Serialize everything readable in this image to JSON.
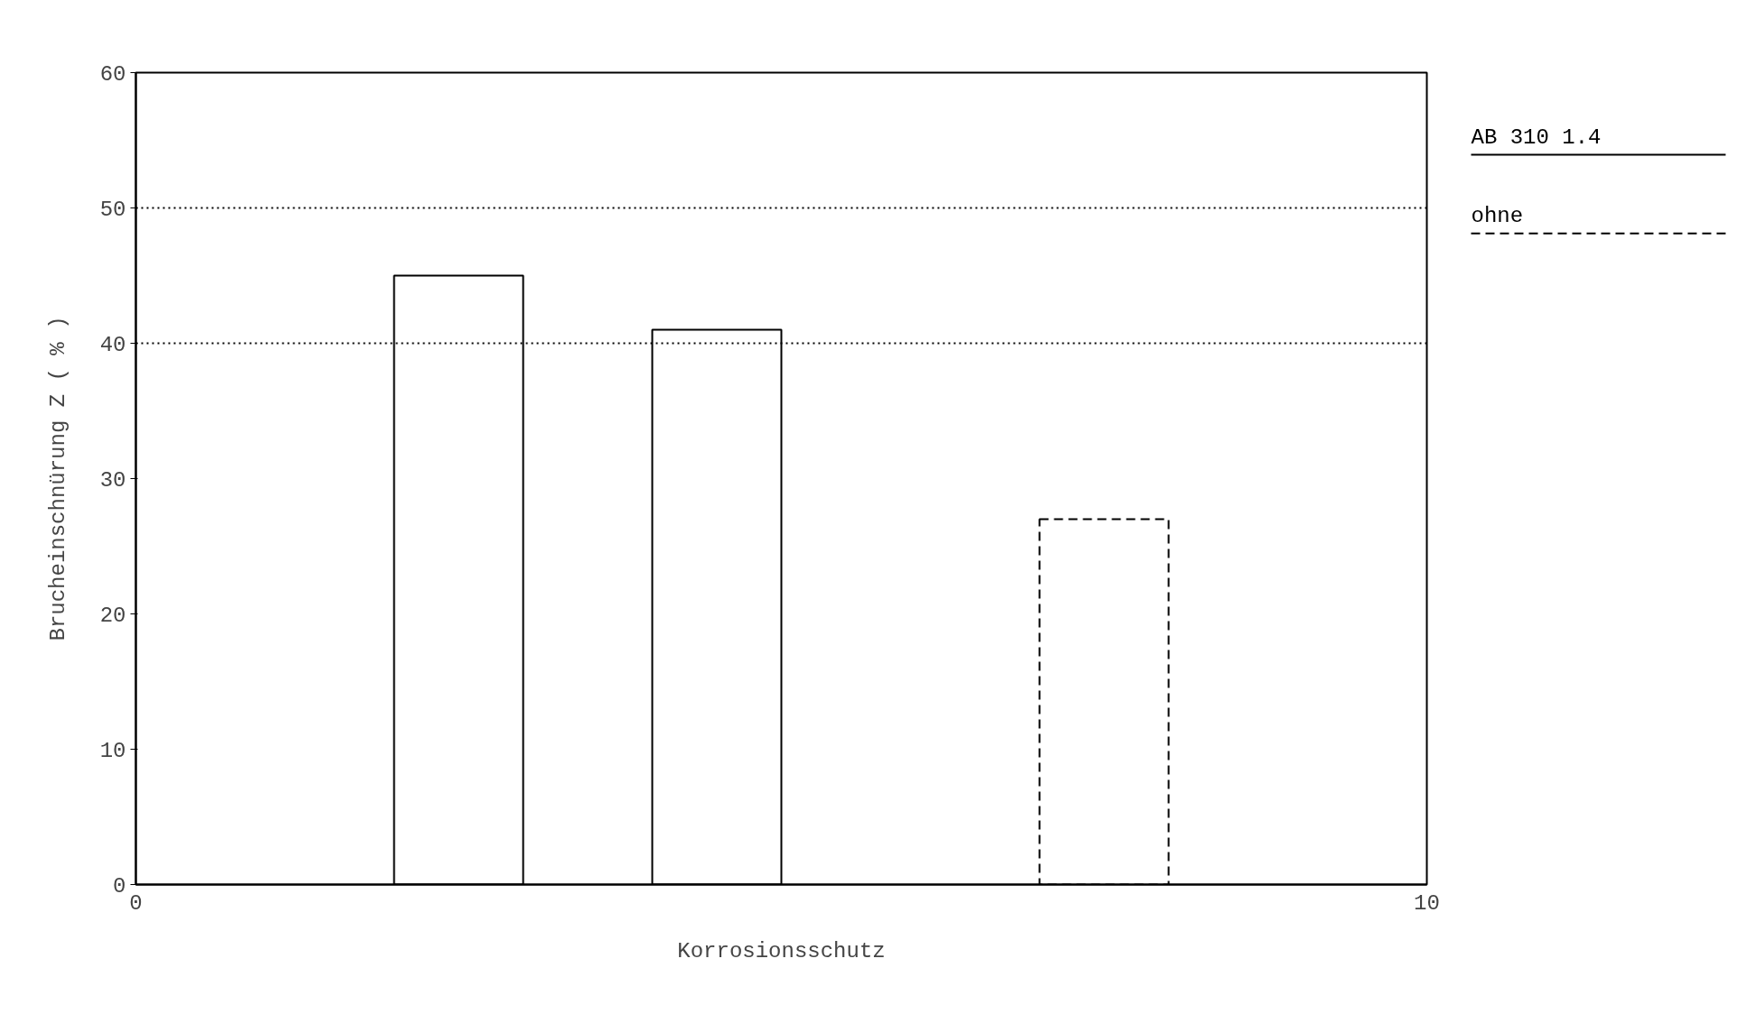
{
  "chart_data": {
    "type": "bar",
    "xlabel": "Korrosionsschutz",
    "ylabel": "Brucheinschnürung Z ( % )",
    "xlim": [
      0,
      10
    ],
    "xticks": [
      0,
      10
    ],
    "ylim": [
      0,
      60
    ],
    "yticks": [
      0,
      10,
      20,
      30,
      40,
      50,
      60
    ],
    "legend": "right",
    "series": [
      {
        "name": "AB 310 1.4",
        "color": "#000000",
        "line_style": "solid",
        "x": [
          2.5,
          4.5
        ],
        "values": [
          45,
          41
        ]
      },
      {
        "name": "ohne",
        "color": "#000000",
        "line_style": "dashed",
        "x": [
          7.5
        ],
        "values": [
          27
        ]
      }
    ],
    "ref_lines": [
      {
        "axis": "y",
        "value": 50,
        "line_style": "dotted"
      },
      {
        "axis": "y",
        "value": 40,
        "line_style": "dotted"
      }
    ]
  }
}
